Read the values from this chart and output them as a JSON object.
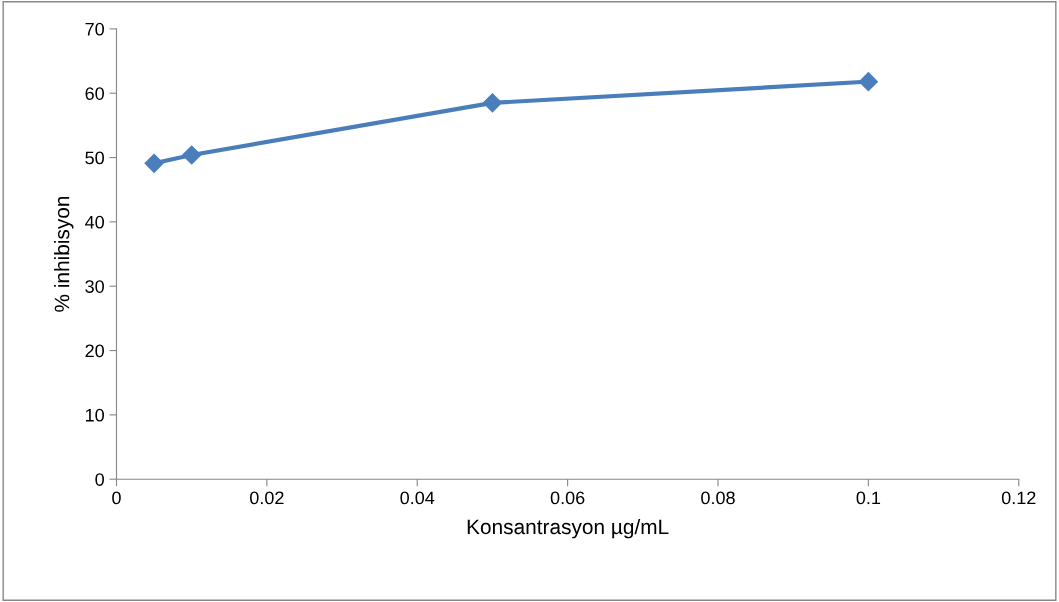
{
  "chart_data": {
    "type": "line",
    "xlabel": "Konsantrasyon µg/mL",
    "ylabel": "% inhibisyon",
    "x": [
      0.005,
      0.01,
      0.05,
      0.1
    ],
    "series": [
      {
        "color": "#4a7ebb",
        "values": [
          49.1,
          50.4,
          58.5,
          61.8
        ]
      }
    ],
    "xlim": [
      0,
      0.12
    ],
    "xticks": [
      0,
      0.02,
      0.04,
      0.06,
      0.08,
      0.1,
      0.12
    ],
    "ylim": [
      0,
      70
    ],
    "yticks": [
      0,
      10,
      20,
      30,
      40,
      50,
      60,
      70
    ],
    "grid": false,
    "legend": false,
    "marker": "diamond",
    "line_style": "solid"
  }
}
